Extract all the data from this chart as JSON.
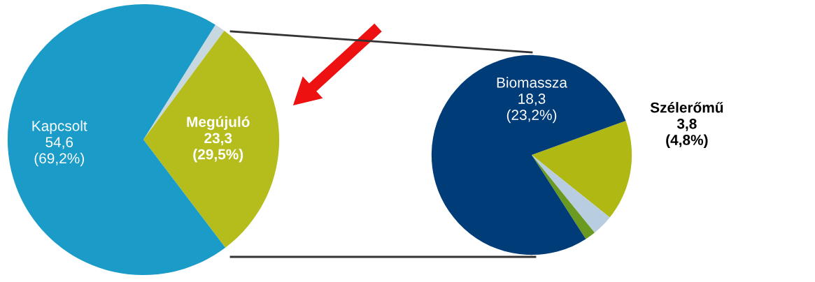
{
  "chart_data": [
    {
      "type": "pie",
      "categories": [
        null,
        "Megújuló",
        "Kapcsolt"
      ],
      "values": [
        1.0,
        23.3,
        54.6
      ],
      "colors": [
        "#c8d8e0",
        "#b5bd1c",
        "#1a9bc8"
      ],
      "value_labels": [
        null,
        "23,3\n(29,5%)",
        "54,6\n(69,2%)"
      ]
    },
    {
      "type": "pie",
      "categories": [
        "Szélerőmű",
        null,
        null,
        "Biomassza"
      ],
      "values": [
        3.8,
        0.8,
        0.4,
        18.3
      ],
      "colors": [
        "#b0b814",
        "#b8cde0",
        "#6a9a20",
        "#003c78"
      ],
      "value_labels": [
        "3,8\n(4,8%)",
        null,
        null,
        "18,3\n(23,2%)"
      ]
    }
  ]
}
